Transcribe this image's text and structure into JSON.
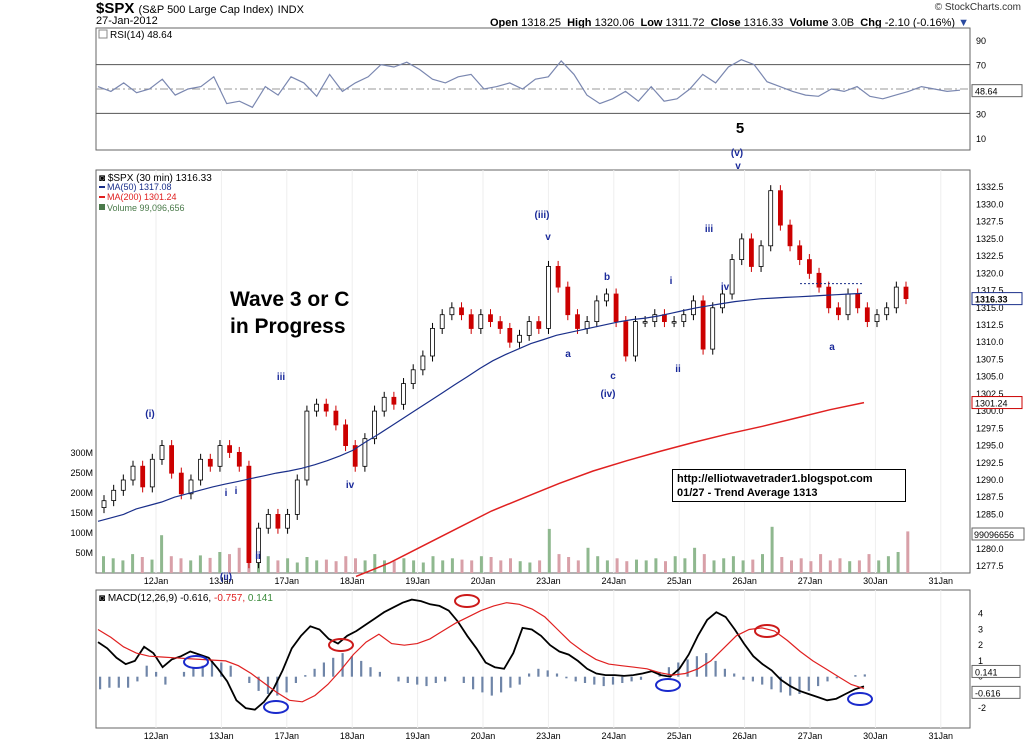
{
  "header": {
    "symbol": "$SPX",
    "name": "(S&P 500 Large Cap Index)",
    "exchange": "INDX",
    "date": "27-Jan-2012",
    "brand": "© StockCharts.com",
    "open_label": "Open",
    "open": "1318.25",
    "high_label": "High",
    "high": "1320.06",
    "low_label": "Low",
    "low": "1311.72",
    "close_label": "Close",
    "close": "1316.33",
    "volume_label": "Volume",
    "volume": "3.0B",
    "chg_label": "Chg",
    "chg": "-2.10 (-0.16%)"
  },
  "colors": {
    "price_up": "#000000",
    "price_down": "#cc0000",
    "ma50": "#1a2f8a",
    "ma200": "#e02020",
    "volume_up": "#8fb88f",
    "volume_down": "#d8a0a8",
    "rsi_line": "#7a87b0",
    "macd_line": "#000000",
    "signal_line": "#e02020",
    "histogram": "#6f85a8",
    "wave_label": "#1a2a9a"
  },
  "annotations": {
    "wave_title": "Wave 3 or C\nin Progress",
    "url": "http://elliotwavetrader1.blogspot.com",
    "trend_note": "01/27 - Trend Average 1313",
    "wave_labels": [
      {
        "text": "5",
        "color": "#000000",
        "bold": true
      },
      {
        "text": "(v)"
      },
      {
        "text": "v"
      },
      {
        "text": "(iii)"
      },
      {
        "text": "v"
      },
      {
        "text": "iii"
      },
      {
        "text": "iv"
      },
      {
        "text": "i"
      },
      {
        "text": "ii"
      },
      {
        "text": "(i)"
      },
      {
        "text": "i"
      },
      {
        "text": "ii"
      },
      {
        "text": "(ii)"
      },
      {
        "text": "iii"
      },
      {
        "text": "iv"
      },
      {
        "text": "a"
      },
      {
        "text": "b"
      },
      {
        "text": "c"
      },
      {
        "text": "(iv)"
      },
      {
        "text": "i"
      },
      {
        "text": "ii"
      },
      {
        "text": "a"
      }
    ]
  },
  "chart_data": [
    {
      "type": "line",
      "panel": "rsi",
      "legend": "RSI(14) 48.64",
      "current": 48.64,
      "yticks": [
        10,
        30,
        50,
        70,
        90
      ],
      "ylim": [
        0,
        100
      ],
      "series": [
        {
          "name": "RSI(14)",
          "values": [
            52,
            48,
            55,
            47,
            50,
            58,
            45,
            50,
            52,
            60,
            38,
            40,
            35,
            52,
            45,
            60,
            55,
            44,
            62,
            48,
            55,
            60,
            70,
            68,
            72,
            66,
            58,
            55,
            60,
            62,
            50,
            52,
            55,
            50,
            58,
            60,
            73,
            62,
            45,
            38,
            42,
            48,
            40,
            52,
            40,
            42,
            50,
            62,
            55,
            68,
            74,
            70,
            56,
            52,
            48,
            45,
            44,
            50,
            48,
            52,
            44,
            42,
            45,
            48,
            52,
            50,
            48,
            49
          ]
        }
      ]
    },
    {
      "type": "bar",
      "panel": "price",
      "legend": "$SPX (30 min) 1316.33",
      "ma50_label": "MA(50) 1317.08",
      "ma200_label": "MA(200) 1301.24",
      "volume_label": "Volume 99,096,656",
      "ylim": [
        1276.5,
        1335
      ],
      "yticks": [
        1277.5,
        1280.0,
        1282.5,
        1285.0,
        1287.5,
        1290.0,
        1292.5,
        1295.0,
        1297.5,
        1300.0,
        1302.5,
        1305.0,
        1307.5,
        1310.0,
        1312.5,
        1315.0,
        1317.5,
        1320.0,
        1322.5,
        1325.0,
        1327.5,
        1330.0,
        1332.5
      ],
      "price_flags": [
        "1316.33",
        "1301.24"
      ],
      "volume_flag": "99096656",
      "volume_ticks": [
        "50M",
        "100M",
        "150M",
        "200M",
        "250M",
        "300M"
      ],
      "xlabels": [
        "12Jan",
        "13Jan",
        "17Jan",
        "18Jan",
        "19Jan",
        "20Jan",
        "23Jan",
        "24Jan",
        "25Jan",
        "26Jan",
        "27Jan",
        "30Jan",
        "31Jan"
      ],
      "close": [
        1287,
        1288.5,
        1290,
        1292,
        1289,
        1293,
        1295,
        1291,
        1288,
        1290,
        1293,
        1292,
        1295,
        1294,
        1292,
        1278,
        1283,
        1285,
        1283,
        1285,
        1290,
        1300,
        1301,
        1300,
        1298,
        1295,
        1292,
        1296,
        1300,
        1302,
        1301,
        1304,
        1306,
        1308,
        1312,
        1314,
        1315,
        1314,
        1312,
        1314,
        1313,
        1312,
        1310,
        1311,
        1313,
        1312,
        1321,
        1318,
        1314,
        1312,
        1313,
        1316,
        1317,
        1313,
        1308,
        1313,
        1313,
        1314,
        1313,
        1313,
        1314,
        1316,
        1309,
        1315,
        1317,
        1322,
        1325,
        1321,
        1324,
        1332,
        1327,
        1324,
        1322,
        1320,
        1318,
        1315,
        1314,
        1317,
        1315,
        1313,
        1314,
        1315,
        1318,
        1316.33
      ],
      "ma50": [
        1284,
        1284.5,
        1285,
        1285.8,
        1286.3,
        1286.8,
        1287.5,
        1288,
        1288.5,
        1289,
        1289.4,
        1289.8,
        1290.2,
        1290.6,
        1291,
        1291.3,
        1291.7,
        1292.2,
        1292.8,
        1293.5,
        1294.3,
        1295.5,
        1296.6,
        1297.8,
        1299,
        1300.2,
        1301.4,
        1302.6,
        1303.8,
        1305,
        1306.2,
        1307.3,
        1308.2,
        1309,
        1309.8,
        1310.4,
        1311,
        1311.4,
        1311.8,
        1312.2,
        1312.6,
        1313,
        1313.3,
        1313.5,
        1313.8,
        1314.2,
        1314.6,
        1315,
        1315.3,
        1315.6,
        1315.9,
        1316.1,
        1316.3,
        1316.4,
        1316.5,
        1316.6,
        1316.7,
        1316.8,
        1316.9,
        1317,
        1317.08
      ],
      "ma200": [
        1276,
        1278,
        1280.5,
        1283,
        1285.5,
        1287.5,
        1289.5,
        1291.3,
        1292.8,
        1294.2,
        1295.5,
        1296.7,
        1297.8,
        1299,
        1300.2,
        1301.24
      ],
      "volume": [
        40,
        35,
        30,
        45,
        38,
        32,
        90,
        40,
        35,
        30,
        42,
        36,
        50,
        45,
        60,
        120,
        55,
        40,
        30,
        35,
        25,
        38,
        30,
        32,
        28,
        40,
        35,
        30,
        45,
        30,
        28,
        35,
        30,
        25,
        40,
        30,
        35,
        32,
        30,
        40,
        38,
        30,
        35,
        28,
        25,
        30,
        105,
        45,
        38,
        30,
        60,
        40,
        30,
        35,
        28,
        32,
        30,
        35,
        28,
        40,
        35,
        60,
        45,
        30,
        35,
        40,
        30,
        32,
        45,
        110,
        38,
        30,
        35,
        28,
        45,
        30,
        35,
        28,
        30,
        45,
        30,
        40,
        50,
        99
      ]
    },
    {
      "type": "line",
      "panel": "macd",
      "legend_main": "MACD(12,26,9)",
      "macd_value": "-0.616",
      "signal_value": "-0.757",
      "hist_value": "0.141",
      "yticks": [
        -2,
        -1,
        0,
        1,
        2,
        3,
        4
      ],
      "flags": [
        "0.141",
        "-0.616"
      ],
      "ylim": [
        -2.5,
        5
      ],
      "series": [
        {
          "name": "MACD(12,26,9)",
          "values": [
            2.2,
            1.8,
            1.2,
            0.8,
            1.0,
            1.9,
            1.5,
            0.6,
            1.1,
            1.3,
            1.6,
            1.4,
            1.2,
            0.5,
            -0.3,
            -1.5,
            -2.0,
            -2.1,
            -1.6,
            -0.8,
            0.4,
            1.8,
            2.6,
            3.2,
            3.0,
            2.4,
            2.1,
            2.6,
            2.9,
            3.3,
            3.7,
            4.1,
            4.4,
            4.7,
            4.9,
            4.8,
            4.6,
            4.5,
            4.2,
            3.5,
            2.6,
            1.8,
            0.9,
            0.6,
            0.5,
            1.5,
            3.1,
            3.0,
            2.6,
            2.0,
            1.6,
            1.4,
            1.0,
            0.5,
            0.2,
            0.1,
            0.1,
            0.05,
            0.1,
            0.2,
            0.35,
            0.1,
            0.0,
            0.5,
            1.4,
            2.6,
            3.6,
            4.1,
            3.8,
            3.0,
            2.1,
            1.3,
            0.8,
            0.4,
            -0.2,
            -0.6,
            -0.9,
            -1.1,
            -1.3,
            -1.5,
            -1.4,
            -1.1,
            -0.8,
            -0.616
          ]
        },
        {
          "name": "Signal",
          "values": [
            3.0,
            2.5,
            1.9,
            1.5,
            1.3,
            1.25,
            1.2,
            1.15,
            1.1,
            1.05,
            1.0,
            0.7,
            0.2,
            -0.4,
            -1.0,
            -1.5,
            -1.6,
            -1.2,
            -0.5,
            0.4,
            1.4,
            2.2,
            2.7,
            2.1,
            2.0,
            2.1,
            2.4,
            2.9,
            3.4,
            3.8,
            4.2,
            4.5,
            4.7,
            4.6,
            4.3,
            3.8,
            3.0,
            2.2,
            1.6,
            1.1,
            0.8,
            0.7,
            0.6,
            0.5,
            0.25,
            0.1,
            0.2,
            0.5,
            1.0,
            1.8,
            2.6,
            3.0,
            3.1,
            2.9,
            2.3,
            1.6,
            1.0,
            0.5,
            0.0,
            -0.5,
            -0.757
          ]
        }
      ],
      "histogram": [
        -0.8,
        -0.7,
        -0.7,
        -0.7,
        -0.3,
        0.7,
        0.3,
        -0.5,
        0.0,
        0.3,
        0.6,
        0.7,
        1.0,
        0.9,
        0.7,
        0.0,
        -0.4,
        -0.9,
        -1.1,
        -1.2,
        -1.0,
        -0.4,
        0.1,
        0.5,
        0.9,
        1.2,
        1.5,
        1.3,
        1.0,
        0.6,
        0.3,
        0.0,
        -0.3,
        -0.4,
        -0.5,
        -0.6,
        -0.4,
        -0.3,
        0.0,
        -0.4,
        -0.8,
        -1.0,
        -1.2,
        -1.0,
        -0.7,
        -0.5,
        0.2,
        0.5,
        0.4,
        0.2,
        -0.1,
        -0.3,
        -0.4,
        -0.5,
        -0.6,
        -0.5,
        -0.4,
        -0.3,
        -0.2,
        0.0,
        0.3,
        0.6,
        0.9,
        1.1,
        1.3,
        1.5,
        1.0,
        0.5,
        0.2,
        -0.2,
        -0.3,
        -0.5,
        -0.8,
        -1.0,
        -1.2,
        -1.1,
        -0.9,
        -0.6,
        -0.3,
        -0.1,
        0.0,
        0.1,
        0.141
      ],
      "xlabels": [
        "12Jan",
        "13Jan",
        "17Jan",
        "18Jan",
        "19Jan",
        "20Jan",
        "23Jan",
        "24Jan",
        "25Jan",
        "26Jan",
        "27Jan",
        "30Jan",
        "31Jan"
      ]
    }
  ]
}
